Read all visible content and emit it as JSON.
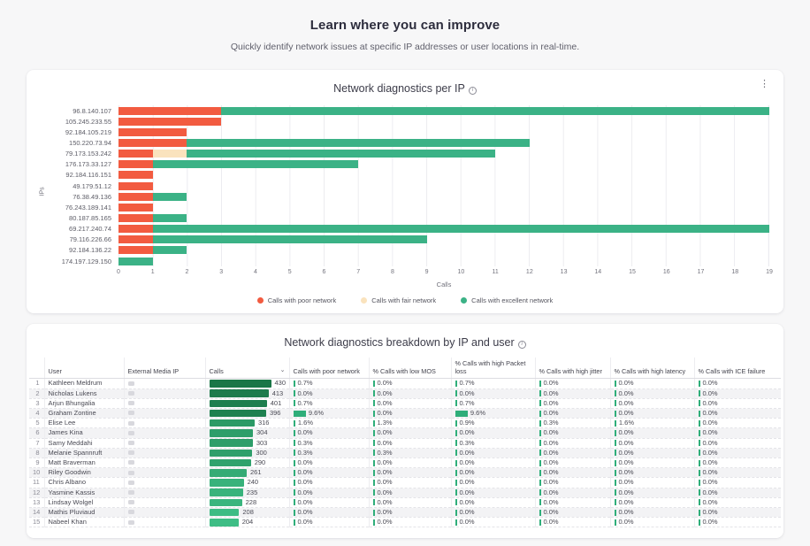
{
  "page": {
    "title": "Learn where you can improve",
    "subtitle": "Quickly identify network issues at specific IP addresses or user locations in real-time."
  },
  "icons": {
    "info": "i",
    "kebab": "⋮",
    "sort_chevron": "⌄"
  },
  "chart_card": {
    "title": "Network diagnostics per IP"
  },
  "chart_data": {
    "type": "bar",
    "orientation": "horizontal",
    "stacked": true,
    "title": "Network diagnostics per IP",
    "xlabel": "Calls",
    "ylabel": "IPs",
    "xlim": [
      0,
      19
    ],
    "x_ticks": [
      0,
      1,
      2,
      3,
      4,
      5,
      6,
      7,
      8,
      9,
      10,
      11,
      12,
      13,
      14,
      15,
      16,
      17,
      18,
      19
    ],
    "grid": true,
    "legend_position": "bottom",
    "categories": [
      "96.8.140.107",
      "105.245.233.55",
      "92.184.105.219",
      "150.220.73.94",
      "79.173.153.242",
      "176.173.33.127",
      "92.184.116.151",
      "49.179.51.12",
      "76.38.49.136",
      "76.243.189.141",
      "80.187.85.165",
      "69.217.240.74",
      "79.116.226.66",
      "92.184.136.22",
      "174.197.129.150"
    ],
    "series": [
      {
        "name": "Calls with poor network",
        "color": "#F25B40",
        "values": [
          3,
          3,
          2,
          2,
          1,
          1,
          1,
          1,
          1,
          1,
          1,
          1,
          1,
          1,
          0
        ]
      },
      {
        "name": "Calls with fair network",
        "color": "#FAE3BD",
        "values": [
          0,
          0,
          0,
          0,
          1,
          0,
          0,
          0,
          0,
          0,
          0,
          0,
          0,
          0,
          0
        ]
      },
      {
        "name": "Calls with excellent network",
        "color": "#3BB286",
        "values": [
          16,
          0,
          0,
          10,
          9,
          6,
          0,
          0,
          1,
          0,
          1,
          18,
          8,
          1,
          1
        ]
      }
    ]
  },
  "table_card": {
    "title": "Network diagnostics breakdown by IP and user",
    "columns": [
      "User",
      "External Media IP",
      "Calls",
      "Calls with poor network",
      "% Calls with low MOS",
      "% Calls with high Packet loss",
      "% Calls with high jitter",
      "% Calls with high latency",
      "% Calls with ICE failure"
    ],
    "max_calls": 430,
    "mini_bar_color": "#2FAE7A",
    "rows": [
      {
        "num": 1,
        "user": "Kathleen Meldrum",
        "calls": 430,
        "texture": "dots-dark",
        "poor": "0.7%",
        "mos": "0.0%",
        "packet": "0.7%",
        "jitter": "0.0%",
        "latency": "0.0%",
        "ice": "0.0%"
      },
      {
        "num": 2,
        "user": "Nicholas Lukens",
        "calls": 413,
        "texture": "solid",
        "poor": "0.0%",
        "mos": "0.0%",
        "packet": "0.0%",
        "jitter": "0.0%",
        "latency": "0.0%",
        "ice": "0.0%"
      },
      {
        "num": 3,
        "user": "Arjun Bhungalia",
        "calls": 401,
        "texture": "solid",
        "poor": "0.7%",
        "mos": "0.0%",
        "packet": "0.7%",
        "jitter": "0.0%",
        "latency": "0.0%",
        "ice": "0.0%"
      },
      {
        "num": 4,
        "user": "Graham Zontine",
        "calls": 396,
        "texture": "dots",
        "poor": "9.6%",
        "mos": "0.0%",
        "packet": "9.6%",
        "jitter": "0.0%",
        "latency": "0.0%",
        "ice": "0.0%"
      },
      {
        "num": 5,
        "user": "Elise Lee",
        "calls": 316,
        "texture": "dots",
        "poor": "1.6%",
        "mos": "1.3%",
        "packet": "0.9%",
        "jitter": "0.3%",
        "latency": "1.6%",
        "ice": "0.0%"
      },
      {
        "num": 6,
        "user": "James Kina",
        "calls": 304,
        "texture": "solid",
        "poor": "0.0%",
        "mos": "0.0%",
        "packet": "0.0%",
        "jitter": "0.0%",
        "latency": "0.0%",
        "ice": "0.0%"
      },
      {
        "num": 7,
        "user": "Samy Meddahi",
        "calls": 303,
        "texture": "solid",
        "poor": "0.3%",
        "mos": "0.0%",
        "packet": "0.3%",
        "jitter": "0.0%",
        "latency": "0.0%",
        "ice": "0.0%"
      },
      {
        "num": 8,
        "user": "Melanie Spannruft",
        "calls": 300,
        "texture": "dots",
        "poor": "0.3%",
        "mos": "0.3%",
        "packet": "0.0%",
        "jitter": "0.0%",
        "latency": "0.0%",
        "ice": "0.0%"
      },
      {
        "num": 9,
        "user": "Matt Braverman",
        "calls": 290,
        "texture": "hatch",
        "poor": "0.0%",
        "mos": "0.0%",
        "packet": "0.0%",
        "jitter": "0.0%",
        "latency": "0.0%",
        "ice": "0.0%"
      },
      {
        "num": 10,
        "user": "Riley Goodwin",
        "calls": 261,
        "texture": "solid",
        "poor": "0.0%",
        "mos": "0.0%",
        "packet": "0.0%",
        "jitter": "0.0%",
        "latency": "0.0%",
        "ice": "0.0%"
      },
      {
        "num": 11,
        "user": "Chris Albano",
        "calls": 240,
        "texture": "hatch",
        "poor": "0.0%",
        "mos": "0.0%",
        "packet": "0.0%",
        "jitter": "0.0%",
        "latency": "0.0%",
        "ice": "0.0%"
      },
      {
        "num": 12,
        "user": "Yasmine Kassis",
        "calls": 235,
        "texture": "hatch",
        "poor": "0.0%",
        "mos": "0.0%",
        "packet": "0.0%",
        "jitter": "0.0%",
        "latency": "0.0%",
        "ice": "0.0%"
      },
      {
        "num": 13,
        "user": "Lindsay Wolgel",
        "calls": 228,
        "texture": "dots",
        "poor": "0.0%",
        "mos": "0.0%",
        "packet": "0.0%",
        "jitter": "0.0%",
        "latency": "0.0%",
        "ice": "0.0%"
      },
      {
        "num": 14,
        "user": "Mathis Pluviaud",
        "calls": 208,
        "texture": "dots",
        "poor": "0.0%",
        "mos": "0.0%",
        "packet": "0.0%",
        "jitter": "0.0%",
        "latency": "0.0%",
        "ice": "0.0%"
      },
      {
        "num": 15,
        "user": "Nabeel Khan",
        "calls": 204,
        "texture": "dots",
        "poor": "0.0%",
        "mos": "0.0%",
        "packet": "0.0%",
        "jitter": "0.0%",
        "latency": "0.0%",
        "ice": "0.0%"
      }
    ]
  }
}
